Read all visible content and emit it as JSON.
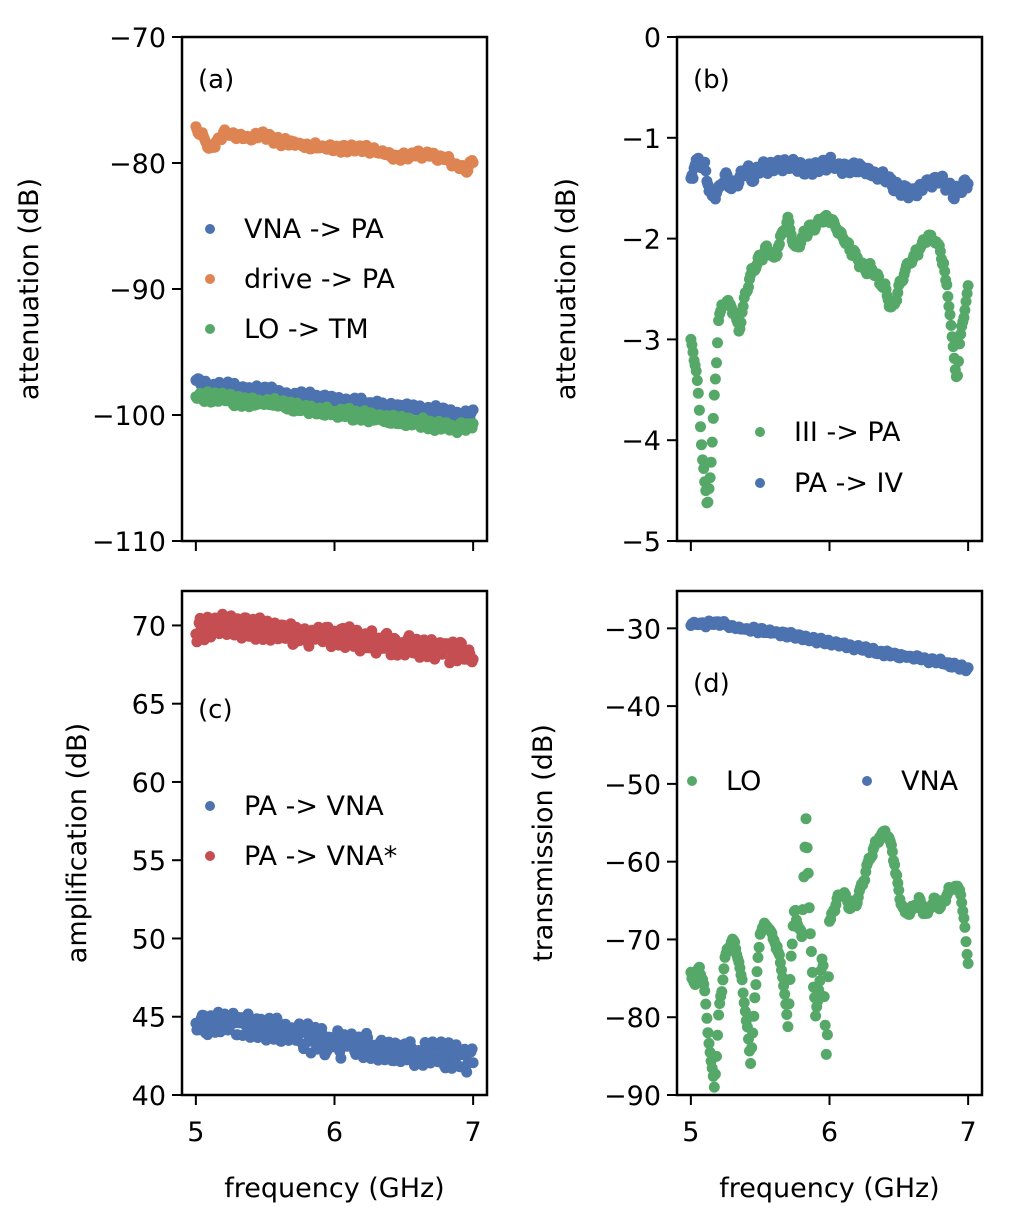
{
  "colors": {
    "blue": "#4c72b0",
    "orange": "#dd8452",
    "green": "#55a868",
    "red": "#c44e52"
  },
  "chart_data": [
    {
      "id": "a",
      "type": "scatter",
      "panel_label": "(a)",
      "ylabel": "attenuation (dB)",
      "xlabel": "",
      "xlim": [
        4.9,
        7.1
      ],
      "ylim": [
        -110,
        -70
      ],
      "xticks": [
        5,
        6,
        7
      ],
      "yticks": [
        -110,
        -100,
        -90,
        -80,
        -70
      ],
      "xtick_labels_visible": false,
      "legend": {
        "placement": "center-left",
        "columns": 1
      },
      "series": [
        {
          "name": "VNA -> PA",
          "color": "#4c72b0",
          "noise": 0.35,
          "x": [
            5.0,
            5.1,
            5.2,
            5.3,
            5.4,
            5.5,
            5.6,
            5.7,
            5.8,
            5.9,
            6.0,
            6.1,
            6.2,
            6.3,
            6.4,
            6.5,
            6.6,
            6.7,
            6.8,
            6.9,
            7.0
          ],
          "y": [
            -97.3,
            -97.8,
            -97.6,
            -97.9,
            -98.1,
            -97.9,
            -98.3,
            -98.6,
            -98.4,
            -98.7,
            -98.8,
            -98.9,
            -99.0,
            -99.2,
            -99.4,
            -99.3,
            -99.5,
            -99.6,
            -99.7,
            -100.1,
            -99.9
          ]
        },
        {
          "name": "drive -> PA",
          "color": "#dd8452",
          "noise": 0.3,
          "x": [
            5.0,
            5.05,
            5.1,
            5.15,
            5.2,
            5.3,
            5.4,
            5.5,
            5.6,
            5.7,
            5.8,
            5.9,
            6.0,
            6.1,
            6.2,
            6.3,
            6.4,
            6.5,
            6.6,
            6.7,
            6.8,
            6.9,
            6.95,
            7.0
          ],
          "y": [
            -77.2,
            -77.8,
            -78.9,
            -78.4,
            -77.6,
            -77.9,
            -78.0,
            -77.8,
            -78.3,
            -78.4,
            -78.6,
            -78.7,
            -78.8,
            -78.9,
            -78.8,
            -79.1,
            -79.4,
            -79.5,
            -79.3,
            -79.4,
            -79.6,
            -80.3,
            -80.6,
            -79.8
          ]
        },
        {
          "name": "LO -> TM",
          "color": "#55a868",
          "noise": 0.45,
          "x": [
            5.0,
            5.1,
            5.2,
            5.3,
            5.4,
            5.5,
            5.6,
            5.7,
            5.8,
            5.9,
            6.0,
            6.1,
            6.2,
            6.3,
            6.4,
            6.5,
            6.6,
            6.7,
            6.8,
            6.9,
            7.0
          ],
          "y": [
            -98.4,
            -98.6,
            -98.7,
            -98.9,
            -99.0,
            -99.1,
            -99.2,
            -99.4,
            -99.5,
            -99.7,
            -99.9,
            -99.9,
            -100.1,
            -100.3,
            -100.3,
            -100.5,
            -100.6,
            -100.7,
            -100.9,
            -101.0,
            -100.6
          ]
        }
      ]
    },
    {
      "id": "b",
      "type": "scatter",
      "panel_label": "(b)",
      "ylabel": "attenuation (dB)",
      "xlabel": "",
      "xlim": [
        4.9,
        7.1
      ],
      "ylim": [
        -5,
        0
      ],
      "xticks": [
        5,
        6,
        7
      ],
      "yticks": [
        -5,
        -4,
        -3,
        -2,
        -1,
        0
      ],
      "xtick_labels_visible": false,
      "legend": {
        "placement": "lower-right",
        "columns": 1
      },
      "series": [
        {
          "name": "III -> PA",
          "color": "#55a868",
          "noise": 0.05,
          "x": [
            5.0,
            5.04,
            5.07,
            5.1,
            5.12,
            5.15,
            5.2,
            5.25,
            5.3,
            5.35,
            5.4,
            5.45,
            5.5,
            5.55,
            5.6,
            5.65,
            5.7,
            5.75,
            5.8,
            5.85,
            5.9,
            5.95,
            6.0,
            6.05,
            6.1,
            6.15,
            6.2,
            6.25,
            6.3,
            6.35,
            6.4,
            6.45,
            6.5,
            6.55,
            6.6,
            6.65,
            6.7,
            6.75,
            6.8,
            6.85,
            6.9,
            6.92,
            6.95,
            7.0
          ],
          "y": [
            -3.0,
            -3.3,
            -3.9,
            -4.4,
            -4.7,
            -4.1,
            -2.8,
            -2.6,
            -2.7,
            -2.9,
            -2.5,
            -2.3,
            -2.2,
            -2.1,
            -2.2,
            -2.0,
            -1.8,
            -2.1,
            -2.0,
            -1.9,
            -1.9,
            -1.8,
            -1.8,
            -1.9,
            -2.0,
            -2.1,
            -2.2,
            -2.3,
            -2.3,
            -2.4,
            -2.5,
            -2.7,
            -2.5,
            -2.3,
            -2.2,
            -2.1,
            -2.0,
            -2.0,
            -2.1,
            -2.5,
            -3.2,
            -3.4,
            -2.9,
            -2.5
          ]
        },
        {
          "name": "PA -> IV",
          "color": "#4c72b0",
          "noise": 0.06,
          "x": [
            5.0,
            5.05,
            5.1,
            5.15,
            5.2,
            5.25,
            5.3,
            5.35,
            5.4,
            5.45,
            5.5,
            5.6,
            5.7,
            5.8,
            5.9,
            6.0,
            6.1,
            6.2,
            6.3,
            6.4,
            6.5,
            6.6,
            6.7,
            6.8,
            6.9,
            6.95,
            7.0
          ],
          "y": [
            -1.4,
            -1.2,
            -1.3,
            -1.6,
            -1.5,
            -1.4,
            -1.5,
            -1.4,
            -1.3,
            -1.4,
            -1.3,
            -1.3,
            -1.25,
            -1.3,
            -1.3,
            -1.25,
            -1.3,
            -1.3,
            -1.35,
            -1.4,
            -1.5,
            -1.55,
            -1.45,
            -1.4,
            -1.55,
            -1.5,
            -1.45
          ]
        }
      ]
    },
    {
      "id": "c",
      "type": "scatter",
      "panel_label": "(c)",
      "ylabel": "amplification (dB)",
      "xlabel": "frequency (GHz)",
      "xlim": [
        4.9,
        7.1
      ],
      "ylim": [
        40,
        72.2
      ],
      "xticks": [
        5,
        6,
        7
      ],
      "yticks": [
        40,
        45,
        50,
        55,
        60,
        65,
        70
      ],
      "xtick_labels_visible": true,
      "legend": {
        "placement": "center-left",
        "columns": 1
      },
      "series": [
        {
          "name": "PA -> VNA",
          "color": "#4c72b0",
          "noise": 0.9,
          "x": [
            5.0,
            5.1,
            5.2,
            5.3,
            5.4,
            5.5,
            5.6,
            5.7,
            5.8,
            5.9,
            6.0,
            6.1,
            6.2,
            6.3,
            6.4,
            6.5,
            6.6,
            6.7,
            6.8,
            6.9,
            7.0
          ],
          "y": [
            44.2,
            44.6,
            44.8,
            44.5,
            44.4,
            44.3,
            44.0,
            43.8,
            43.7,
            43.5,
            43.3,
            43.2,
            43.1,
            42.9,
            42.8,
            42.7,
            42.6,
            42.7,
            42.6,
            42.5,
            42.3
          ]
        },
        {
          "name": "PA -> VNA*",
          "color": "#c44e52",
          "noise": 0.7,
          "x": [
            5.0,
            5.1,
            5.2,
            5.3,
            5.4,
            5.5,
            5.6,
            5.7,
            5.8,
            5.9,
            6.0,
            6.1,
            6.2,
            6.3,
            6.4,
            6.5,
            6.6,
            6.7,
            6.8,
            6.9,
            7.0
          ],
          "y": [
            69.7,
            69.8,
            70.0,
            69.9,
            69.8,
            69.7,
            69.6,
            69.5,
            69.4,
            69.3,
            69.3,
            69.2,
            69.0,
            68.9,
            68.8,
            68.7,
            68.7,
            68.5,
            68.4,
            68.3,
            67.9
          ]
        }
      ]
    },
    {
      "id": "d",
      "type": "scatter",
      "panel_label": "(d)",
      "ylabel": "transmission (dB)",
      "xlabel": "frequency (GHz)",
      "xlim": [
        4.9,
        7.1
      ],
      "ylim": [
        -90,
        -25.2
      ],
      "xticks": [
        5,
        6,
        7
      ],
      "yticks": [
        -90,
        -80,
        -70,
        -60,
        -50,
        -40,
        -30
      ],
      "xtick_labels_visible": true,
      "legend": {
        "placement": "center",
        "columns": 2
      },
      "series": [
        {
          "name": "LO",
          "color": "#55a868",
          "noise": 0.6,
          "x": [
            5.0,
            5.03,
            5.06,
            5.1,
            5.14,
            5.17,
            5.2,
            5.25,
            5.3,
            5.35,
            5.4,
            5.43,
            5.46,
            5.5,
            5.55,
            5.6,
            5.65,
            5.7,
            5.72,
            5.75,
            5.8,
            5.83,
            5.86,
            5.9,
            5.95,
            5.98,
            6.0,
            6.05,
            6.1,
            6.15,
            6.2,
            6.25,
            6.3,
            6.35,
            6.4,
            6.45,
            6.5,
            6.55,
            6.6,
            6.65,
            6.7,
            6.75,
            6.8,
            6.85,
            6.9,
            6.95,
            7.0
          ],
          "y": [
            -74,
            -76,
            -73,
            -77,
            -85,
            -89,
            -80,
            -72,
            -70,
            -73,
            -80,
            -86,
            -78,
            -69,
            -68,
            -70,
            -73,
            -81,
            -73,
            -66,
            -70,
            -54,
            -69,
            -80,
            -72,
            -86,
            -68,
            -65,
            -64,
            -66,
            -65,
            -62,
            -59,
            -57,
            -56,
            -58,
            -64,
            -67,
            -66,
            -65,
            -67,
            -65,
            -66,
            -64,
            -63,
            -64,
            -73
          ]
        },
        {
          "name": "VNA",
          "color": "#4c72b0",
          "noise": 0.35,
          "x": [
            5.0,
            5.1,
            5.2,
            5.3,
            5.4,
            5.5,
            5.6,
            5.7,
            5.8,
            5.9,
            6.0,
            6.1,
            6.2,
            6.3,
            6.4,
            6.5,
            6.6,
            6.7,
            6.8,
            6.9,
            7.0
          ],
          "y": [
            -29.4,
            -29.5,
            -29.3,
            -29.8,
            -30.1,
            -30.3,
            -30.5,
            -30.8,
            -31.2,
            -31.5,
            -31.8,
            -32.1,
            -32.5,
            -32.8,
            -33.2,
            -33.5,
            -33.8,
            -34.0,
            -34.3,
            -34.8,
            -35.2
          ]
        }
      ]
    }
  ]
}
